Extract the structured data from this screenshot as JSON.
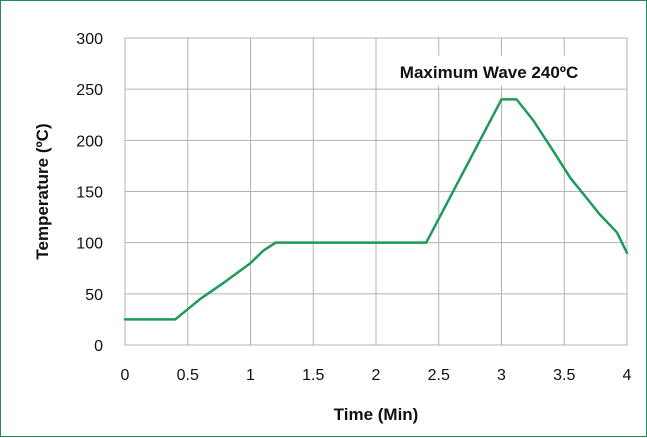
{
  "chart_data": {
    "type": "line",
    "title": "",
    "xlabel": "Time (Min)",
    "ylabel": "Temperature (ºC)",
    "xlim": [
      0,
      4
    ],
    "ylim": [
      0,
      300
    ],
    "x_ticks": [
      0,
      0.5,
      1,
      1.5,
      2,
      2.5,
      3,
      3.5,
      4
    ],
    "x_tick_labels": [
      "0",
      "0.5",
      "1",
      "1.5",
      "2",
      "2.5",
      "3",
      "3.5",
      "4"
    ],
    "y_ticks": [
      0,
      50,
      100,
      150,
      200,
      250,
      300
    ],
    "y_tick_labels": [
      "0",
      "50",
      "100",
      "150",
      "200",
      "250",
      "300"
    ],
    "grid": true,
    "line_color": "#1f9a5b",
    "grid_color": "#b3b3b3",
    "series": [
      {
        "x": [
          0,
          0.4,
          0.5,
          0.6,
          0.8,
          1.0,
          1.1,
          1.2,
          1.5,
          2.0,
          2.4,
          3.0,
          3.12,
          3.25,
          3.4,
          3.55,
          3.65,
          3.78,
          3.92,
          4.0
        ],
        "y": [
          25,
          25,
          35,
          45,
          62,
          80,
          92,
          100,
          100,
          100,
          100,
          240,
          240,
          220,
          192,
          163,
          148,
          128,
          110,
          90
        ]
      }
    ],
    "annotations": [
      {
        "text": "Maximum Wave 240ºC",
        "x": 3.1,
        "y": 265
      }
    ]
  }
}
